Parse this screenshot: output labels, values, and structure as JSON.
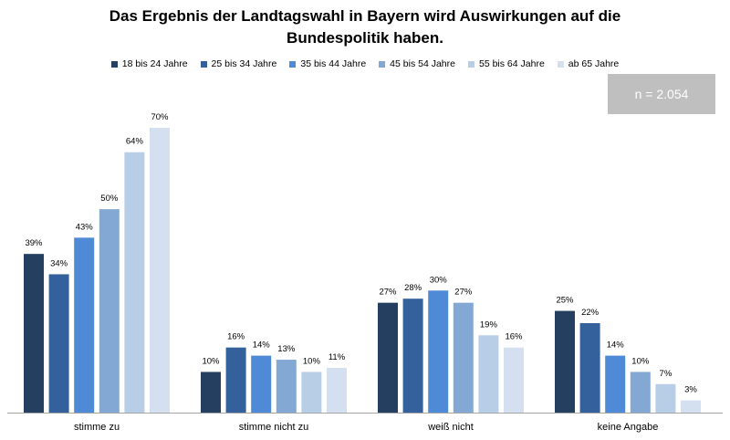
{
  "title_lines": [
    "Das Ergebnis der Landtagswahl in Bayern wird Auswirkungen auf die",
    "Bundespolitik haben."
  ],
  "n_label": "n = 2.054",
  "colors": [
    "#243f60",
    "#34609b",
    "#4f8ad6",
    "#84a8d4",
    "#b8cde6",
    "#d4e0ef"
  ],
  "chart_data": {
    "type": "bar",
    "title": "Das Ergebnis der Landtagswahl in Bayern wird Auswirkungen auf die Bundespolitik haben.",
    "categories": [
      "stimme zu",
      "stimme nicht zu",
      "weiß nicht",
      "keine Angabe"
    ],
    "ylim": [
      0,
      70
    ],
    "grid": false,
    "legend_position": "top",
    "series": [
      {
        "name": "18 bis 24 Jahre",
        "values": [
          39,
          10,
          27,
          25
        ],
        "labels": [
          "39%",
          "10%",
          "27%",
          "25%"
        ]
      },
      {
        "name": "25 bis 34 Jahre",
        "values": [
          34,
          16,
          28,
          22
        ],
        "labels": [
          "34%",
          "16%",
          "28%",
          "22%"
        ]
      },
      {
        "name": "35 bis 44 Jahre",
        "values": [
          43,
          14,
          30,
          14
        ],
        "labels": [
          "43%",
          "14%",
          "30%",
          "14%"
        ]
      },
      {
        "name": "45 bis 54 Jahre",
        "values": [
          50,
          13,
          27,
          10
        ],
        "labels": [
          "50%",
          "13%",
          "27%",
          "10%"
        ]
      },
      {
        "name": "55 bis 64 Jahre",
        "values": [
          64,
          10,
          19,
          7
        ],
        "labels": [
          "64%",
          "10%",
          "19%",
          "7%"
        ]
      },
      {
        "name": "ab 65 Jahre",
        "values": [
          70,
          11,
          16,
          3
        ],
        "labels": [
          "70%",
          "11%",
          "16%",
          "3%"
        ]
      }
    ]
  }
}
